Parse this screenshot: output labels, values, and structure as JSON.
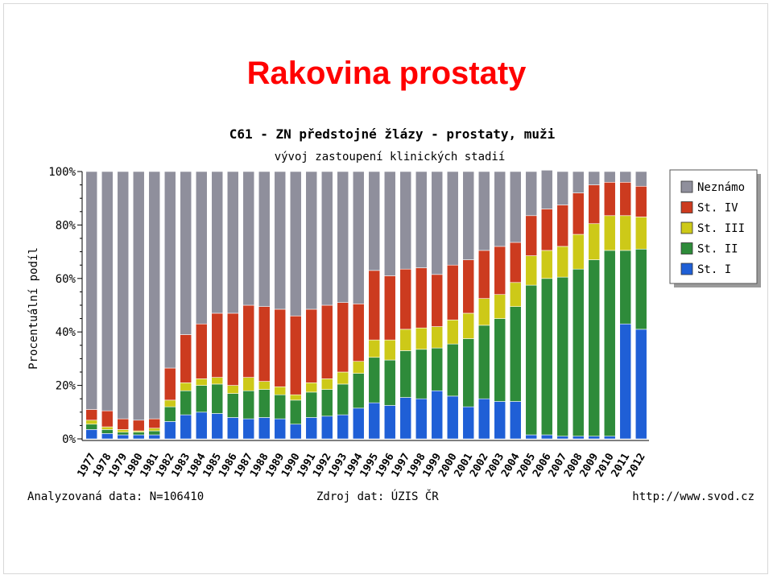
{
  "slide": {
    "title": "Rakovina prostaty"
  },
  "chart_data": {
    "type": "bar",
    "stacked": true,
    "title": "C61 - ZN předstojné žlázy - prostaty, muži",
    "subtitle": "vývoj zastoupení klinických stadií",
    "ylabel": "Procentuální podíl",
    "xlabel": "",
    "ylim": [
      0,
      100
    ],
    "yticks": [
      "0%",
      "20%",
      "40%",
      "60%",
      "80%",
      "100%"
    ],
    "grid": false,
    "legend_position": "right",
    "categories": [
      "1977",
      "1978",
      "1979",
      "1980",
      "1981",
      "1982",
      "1983",
      "1984",
      "1985",
      "1986",
      "1987",
      "1988",
      "1989",
      "1990",
      "1991",
      "1992",
      "1993",
      "1994",
      "1995",
      "1996",
      "1997",
      "1998",
      "1999",
      "2000",
      "2001",
      "2002",
      "2003",
      "2004",
      "2005",
      "2006",
      "2007",
      "2008",
      "2009",
      "2010",
      "2011",
      "2012"
    ],
    "series": [
      {
        "name": "St. I",
        "color": "#1f5fd6",
        "values": [
          3.5,
          2,
          1.5,
          1.5,
          1.5,
          6.5,
          9,
          10,
          9.5,
          8,
          7.5,
          8,
          7.5,
          5.5,
          8,
          8.5,
          9,
          11.5,
          13.5,
          12.5,
          15.5,
          15,
          18,
          16,
          12,
          15,
          14,
          14,
          1.5,
          1.5,
          1,
          1,
          1,
          1,
          43,
          41
        ]
      },
      {
        "name": "St. II",
        "color": "#2e8b3a",
        "values": [
          2,
          1.5,
          1,
          1,
          1.5,
          5.5,
          9,
          10,
          11,
          9,
          10.5,
          10.5,
          9,
          9,
          9.5,
          10,
          11.5,
          13,
          17,
          17,
          17.5,
          18.5,
          16,
          19.5,
          25.5,
          27.5,
          31,
          35.5,
          56,
          58.5,
          59.5,
          62.5,
          66,
          69.5,
          27.5,
          30
        ]
      },
      {
        "name": "St. III",
        "color": "#cdc918",
        "values": [
          1.5,
          1,
          1,
          0.5,
          1,
          2.5,
          3,
          2.5,
          2.5,
          3,
          5,
          3,
          3,
          2,
          3.5,
          4,
          4.5,
          4.5,
          6.5,
          7.5,
          8,
          8,
          8,
          9,
          9.5,
          10,
          9,
          9,
          11,
          10.5,
          11.5,
          13,
          13.5,
          13,
          13,
          12
        ]
      },
      {
        "name": "St. IV",
        "color": "#cc3b1f",
        "values": [
          4,
          6,
          4,
          4,
          3.5,
          12,
          18,
          20.5,
          24,
          27,
          27,
          28,
          29,
          29.5,
          27.5,
          27.5,
          26,
          21.5,
          26,
          24,
          22.5,
          22.5,
          19.5,
          20.5,
          20,
          18,
          18,
          15,
          15,
          15.5,
          15.5,
          15.5,
          14.5,
          12.5,
          12.5,
          11.5
        ]
      },
      {
        "name": "Neznámo",
        "color": "#8f8f9c",
        "values": [
          89,
          89.5,
          92.5,
          93,
          92.5,
          73.5,
          61,
          57,
          53,
          53,
          50,
          50.5,
          51.5,
          54,
          51.5,
          50,
          49,
          49.5,
          37,
          39,
          36.5,
          36,
          38.5,
          35,
          33,
          29.5,
          28,
          26.5,
          16.5,
          14.5,
          12.5,
          8,
          5,
          4,
          4,
          5.5
        ]
      }
    ],
    "footer_left": "Analyzovaná data: N=106410",
    "footer_center": "Zdroj dat: ÚZIS ČR",
    "footer_right": "http://www.svod.cz"
  }
}
